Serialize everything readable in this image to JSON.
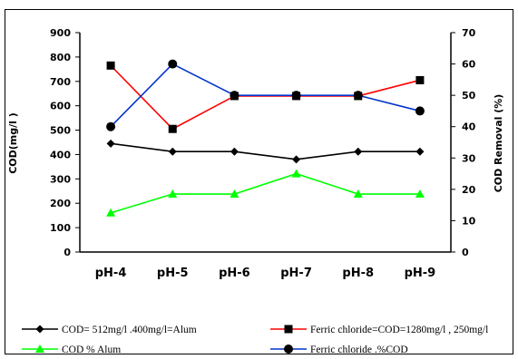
{
  "chart_data": {
    "type": "line",
    "categories": [
      "pH-4",
      "pH-5",
      "pH-6",
      "pH-7",
      "pH-8",
      "pH-9"
    ],
    "y_left": {
      "label": "COD(mg/l )",
      "lim": [
        0,
        900
      ],
      "ticks": [
        "0",
        "100",
        "200",
        "300",
        "400",
        "500",
        "600",
        "700",
        "800",
        "900"
      ]
    },
    "y_right": {
      "label": "COD Removal (%)",
      "lim": [
        0,
        70
      ],
      "ticks": [
        "0",
        "10",
        "20",
        "30",
        "40",
        "50",
        "60",
        "70"
      ]
    },
    "series": [
      {
        "name": "COD= 512mg/l .400mg/l=Alum",
        "axis": "left",
        "color": "#000000",
        "marker": "diamond",
        "values": [
          445,
          412,
          412,
          380,
          412,
          412
        ]
      },
      {
        "name": "Ferric chloride=COD=1280mg/l , 250mg/l",
        "axis": "left",
        "color": "#ff0000",
        "marker": "square",
        "values": [
          765,
          505,
          640,
          640,
          640,
          705
        ]
      },
      {
        "name": "COD % Alum",
        "axis": "right",
        "color": "#00ff00",
        "marker": "triangle",
        "values": [
          12.5,
          18.5,
          18.5,
          25,
          18.5,
          18.5
        ]
      },
      {
        "name": "Ferric chloride .%COD",
        "axis": "right",
        "color": "#0033cc",
        "marker": "circle",
        "values": [
          40,
          60,
          50,
          50,
          50,
          45
        ]
      }
    ],
    "grid": false,
    "legend_position": "bottom"
  }
}
